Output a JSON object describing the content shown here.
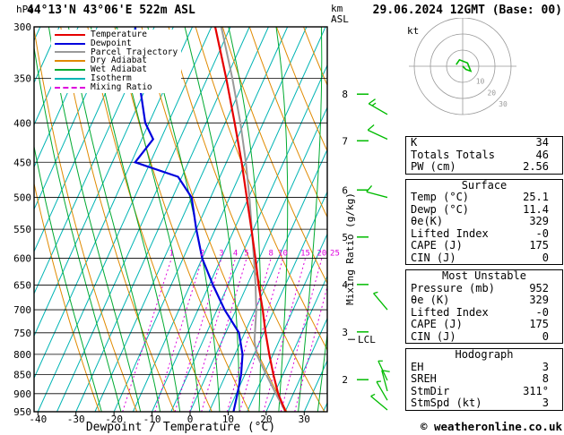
{
  "header": {
    "station": "44°13'N 43°06'E 522m ASL",
    "datetime": "29.06.2024 12GMT (Base: 00)"
  },
  "axes": {
    "pressure_unit": "hPa",
    "altitude_unit_line1": "km",
    "altitude_unit_line2": "ASL",
    "xlabel": "Dewpoint / Temperature (°C)",
    "mixing_label": "Mixing Ratio (g/kg)",
    "lcl_label": "LCL",
    "pressure_ticks": [
      300,
      350,
      400,
      450,
      500,
      550,
      600,
      650,
      700,
      750,
      800,
      850,
      900,
      950
    ],
    "temp_ticks": [
      -40,
      -30,
      -20,
      -10,
      0,
      10,
      20,
      30
    ]
  },
  "legend": {
    "items": [
      {
        "label": "Temperature",
        "color": "#e60000",
        "dash": false
      },
      {
        "label": "Dewpoint",
        "color": "#0000dd",
        "dash": false
      },
      {
        "label": "Parcel Trajectory",
        "color": "#9a9a9a",
        "dash": false
      },
      {
        "label": "Dry Adiabat",
        "color": "#e08a00",
        "dash": false
      },
      {
        "label": "Wet Adiabat",
        "color": "#00aa30",
        "dash": false
      },
      {
        "label": "Isotherm",
        "color": "#00b4b4",
        "dash": false
      },
      {
        "label": "Mixing Ratio",
        "color": "#dd00dd",
        "dash": true
      }
    ]
  },
  "chart_data": {
    "type": "line",
    "title": "Skew-T log-P sounding",
    "x_axis": {
      "label": "Dewpoint / Temperature (°C)",
      "ticks": [
        -40,
        -30,
        -20,
        -10,
        0,
        10,
        20,
        30
      ],
      "range": [
        -40,
        35
      ]
    },
    "y_axis": {
      "label": "hPa",
      "scale": "log",
      "ticks": [
        300,
        350,
        400,
        450,
        500,
        550,
        600,
        650,
        700,
        750,
        800,
        850,
        900,
        950
      ],
      "range": [
        950,
        300
      ]
    },
    "style": {
      "temperature": "#e60000",
      "dewpoint": "#0000dd",
      "parcel": "#9a9a9a",
      "isotherm": "#00b4b4",
      "dry_adiabat": "#e08a00",
      "wet_adiabat": "#00aa30",
      "mixing_ratio": "#dd00dd",
      "grid": "#000000",
      "wind": "#00bb00"
    },
    "series": [
      {
        "name": "Temperature",
        "points": [
          [
            950,
            25.1
          ],
          [
            900,
            21
          ],
          [
            850,
            17.5
          ],
          [
            800,
            14
          ],
          [
            750,
            10.5
          ],
          [
            700,
            7
          ],
          [
            650,
            3
          ],
          [
            600,
            -1
          ],
          [
            550,
            -5.5
          ],
          [
            500,
            -10.5
          ],
          [
            450,
            -16
          ],
          [
            400,
            -22.5
          ],
          [
            350,
            -30
          ],
          [
            300,
            -39
          ]
        ]
      },
      {
        "name": "Dewpoint",
        "points": [
          [
            950,
            11.4
          ],
          [
            900,
            10.3
          ],
          [
            850,
            9
          ],
          [
            800,
            7
          ],
          [
            750,
            3.5
          ],
          [
            700,
            -3
          ],
          [
            650,
            -9
          ],
          [
            600,
            -15
          ],
          [
            550,
            -20
          ],
          [
            500,
            -25
          ],
          [
            470,
            -31
          ],
          [
            450,
            -44
          ],
          [
            420,
            -42
          ],
          [
            400,
            -46
          ],
          [
            350,
            -53
          ],
          [
            300,
            -60
          ]
        ]
      },
      {
        "name": "Parcel Trajectory",
        "points": [
          [
            950,
            25.1
          ],
          [
            900,
            20.4
          ],
          [
            850,
            15.6
          ],
          [
            800,
            10.7
          ],
          [
            768,
            8.5
          ],
          [
            700,
            5.3
          ],
          [
            650,
            2.2
          ],
          [
            600,
            -1.4
          ],
          [
            550,
            -5.4
          ],
          [
            500,
            -9.8
          ],
          [
            450,
            -14.9
          ],
          [
            400,
            -21
          ],
          [
            350,
            -28.4
          ],
          [
            300,
            -37.4
          ]
        ]
      }
    ],
    "mixing_ratio_values": [
      1,
      2,
      3,
      4,
      5,
      8,
      10,
      15,
      20,
      25
    ],
    "km_scale": [
      {
        "km": 8,
        "p": 367
      },
      {
        "km": 7,
        "p": 422
      },
      {
        "km": 6,
        "p": 489
      },
      {
        "km": 5,
        "p": 563
      },
      {
        "km": 4,
        "p": 649
      },
      {
        "km": 3,
        "p": 748
      },
      {
        "km": 2,
        "p": 863
      }
    ],
    "lcl_pressure": 765,
    "winds": [
      {
        "p": 390,
        "dir": 300,
        "spd": 15
      },
      {
        "p": 420,
        "dir": 295,
        "spd": 10
      },
      {
        "p": 500,
        "dir": 285,
        "spd": 10
      },
      {
        "p": 700,
        "dir": 320,
        "spd": 5
      },
      {
        "p": 865,
        "dir": 335,
        "spd": 5
      },
      {
        "p": 893,
        "dir": 345,
        "spd": 10
      },
      {
        "p": 918,
        "dir": 330,
        "spd": 5
      },
      {
        "p": 945,
        "dir": 310,
        "spd": 5
      }
    ],
    "hodograph": {
      "unit": "kt",
      "rings_kt": [
        10,
        20,
        30
      ],
      "ring_labels": [
        "10",
        "20",
        "30"
      ],
      "trace_uv_kt": [
        [
          0,
          0
        ],
        [
          2,
          -2
        ],
        [
          5,
          -3
        ],
        [
          3,
          2
        ],
        [
          -2,
          4
        ],
        [
          -4,
          1
        ]
      ],
      "storm_dir": 311,
      "storm_spd_kt": 3
    }
  },
  "panel": {
    "hodograph_unit": "kt",
    "tables": [
      {
        "header": null,
        "rows": [
          [
            "K",
            "34"
          ],
          [
            "Totals Totals",
            "46"
          ],
          [
            "PW (cm)",
            "2.56"
          ]
        ]
      },
      {
        "header": "Surface",
        "rows": [
          [
            "Temp (°C)",
            "25.1"
          ],
          [
            "Dewp (°C)",
            "11.4"
          ],
          [
            "θe(K)",
            "329"
          ],
          [
            "Lifted Index",
            "-0"
          ],
          [
            "CAPE (J)",
            "175"
          ],
          [
            "CIN (J)",
            "0"
          ]
        ]
      },
      {
        "header": "Most Unstable",
        "rows": [
          [
            "Pressure (mb)",
            "952"
          ],
          [
            "θe (K)",
            "329"
          ],
          [
            "Lifted Index",
            "-0"
          ],
          [
            "CAPE (J)",
            "175"
          ],
          [
            "CIN (J)",
            "0"
          ]
        ]
      },
      {
        "header": "Hodograph",
        "rows": [
          [
            "EH",
            "3"
          ],
          [
            "SREH",
            "8"
          ],
          [
            "StmDir",
            "311°"
          ],
          [
            "StmSpd (kt)",
            "3"
          ]
        ]
      }
    ]
  },
  "footer": {
    "copyright": "© weatheronline.co.uk"
  }
}
